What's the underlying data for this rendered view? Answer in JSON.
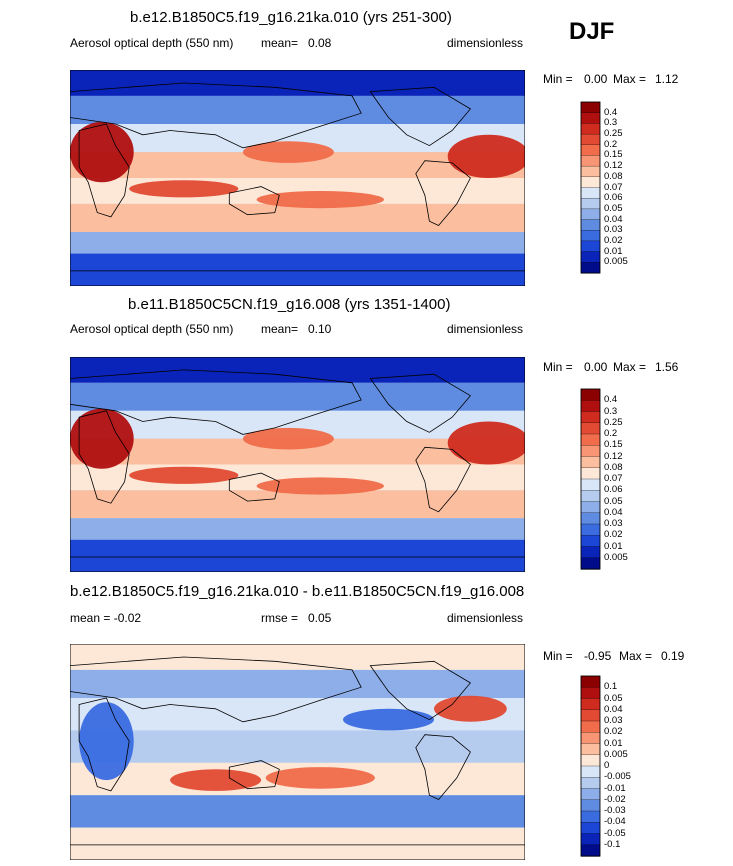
{
  "season": "DJF",
  "panels": [
    {
      "title": "b.e12.B1850C5.f19_g16.21ka.010 (yrs 251-300)",
      "left_label": "Aerosol optical depth (550 nm)",
      "mid_label": "mean=",
      "mid_value": "0.08",
      "units": "dimensionless",
      "min_label": "Min =",
      "min_value": "0.00",
      "max_label": "Max =",
      "max_value": "1.12",
      "colorbar_labels": [
        "0.4",
        "0.3",
        "0.25",
        "0.2",
        "0.15",
        "0.12",
        "0.08",
        "0.07",
        "0.06",
        "0.05",
        "0.04",
        "0.03",
        "0.02",
        "0.01",
        "0.005"
      ]
    },
    {
      "title": "b.e11.B1850C5CN.f19_g16.008 (yrs 1351-1400)",
      "left_label": "Aerosol optical depth (550 nm)",
      "mid_label": "mean=",
      "mid_value": "0.10",
      "units": "dimensionless",
      "min_label": "Min =",
      "min_value": "0.00",
      "max_label": "Max =",
      "max_value": "1.56",
      "colorbar_labels": [
        "0.4",
        "0.3",
        "0.25",
        "0.2",
        "0.15",
        "0.12",
        "0.08",
        "0.07",
        "0.06",
        "0.05",
        "0.04",
        "0.03",
        "0.02",
        "0.01",
        "0.005"
      ]
    },
    {
      "title": "b.e12.B1850C5.f19_g16.21ka.010 - b.e11.B1850C5CN.f19_g16.008",
      "left_label": "mean =  -0.02",
      "mid_label": "rmse =",
      "mid_value": "0.05",
      "units": "dimensionless",
      "min_label": "Min =",
      "min_value": "-0.95",
      "max_label": "Max =",
      "max_value": "0.19",
      "colorbar_labels": [
        "0.1",
        "0.05",
        "0.04",
        "0.03",
        "0.02",
        "0.01",
        "0.005",
        "0",
        "-0.005",
        "-0.01",
        "-0.02",
        "-0.03",
        "-0.04",
        "-0.05",
        "-0.1"
      ]
    }
  ],
  "colors": {
    "scale_abs": [
      "#8b0000",
      "#b00f0f",
      "#cf2b1e",
      "#e24a33",
      "#f06c4a",
      "#f79574",
      "#fbbfa0",
      "#fde8d8",
      "#d9e6f7",
      "#b6ccef",
      "#8daee8",
      "#5f8ce0",
      "#3a6ce0",
      "#1b46d6",
      "#0a23b8",
      "#000c8a"
    ],
    "scale_diff": [
      "#8b0000",
      "#b00f0f",
      "#cf2b1e",
      "#e24a33",
      "#f06c4a",
      "#f79574",
      "#fbbfa0",
      "#fde8d8",
      "#d9e6f7",
      "#b6ccef",
      "#8daee8",
      "#5f8ce0",
      "#3a6ce0",
      "#1b46d6",
      "#0a23b8",
      "#000c8a"
    ]
  },
  "chart_data": [
    {
      "type": "heatmap",
      "title": "b.e12.B1850C5.f19_g16.21ka.010 (yrs 251-300)",
      "variable": "Aerosol optical depth (550 nm)",
      "units": "dimensionless",
      "mean": 0.08,
      "min": 0.0,
      "max": 1.12,
      "levels": [
        0.005,
        0.01,
        0.02,
        0.03,
        0.04,
        0.05,
        0.06,
        0.07,
        0.08,
        0.12,
        0.15,
        0.2,
        0.25,
        0.3,
        0.4
      ]
    },
    {
      "type": "heatmap",
      "title": "b.e11.B1850C5CN.f19_g16.008 (yrs 1351-1400)",
      "variable": "Aerosol optical depth (550 nm)",
      "units": "dimensionless",
      "mean": 0.1,
      "min": 0.0,
      "max": 1.56,
      "levels": [
        0.005,
        0.01,
        0.02,
        0.03,
        0.04,
        0.05,
        0.06,
        0.07,
        0.08,
        0.12,
        0.15,
        0.2,
        0.25,
        0.3,
        0.4
      ]
    },
    {
      "type": "heatmap",
      "title": "b.e12.B1850C5.f19_g16.21ka.010 - b.e11.B1850C5CN.f19_g16.008",
      "units": "dimensionless",
      "mean": -0.02,
      "rmse": 0.05,
      "min": -0.95,
      "max": 0.19,
      "levels": [
        -0.1,
        -0.05,
        -0.04,
        -0.03,
        -0.02,
        -0.01,
        -0.005,
        0,
        0.005,
        0.01,
        0.02,
        0.03,
        0.04,
        0.05,
        0.1
      ]
    }
  ]
}
